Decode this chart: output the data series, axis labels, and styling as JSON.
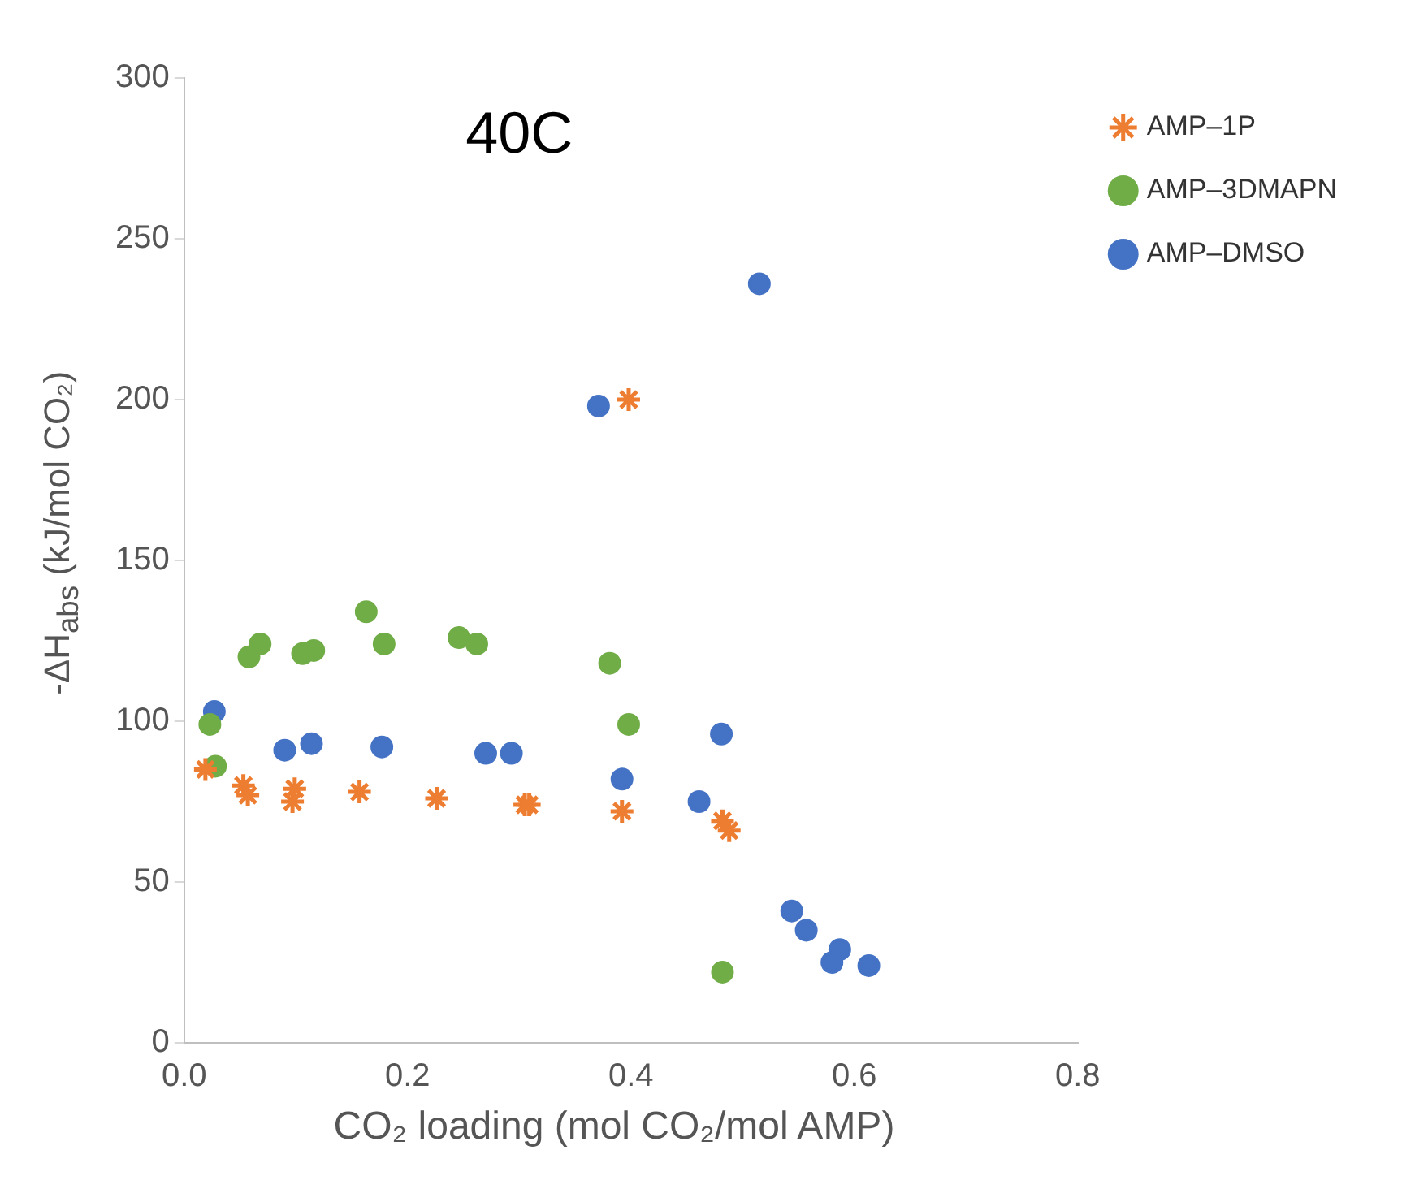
{
  "chart_data": {
    "type": "scatter",
    "title": "40C",
    "xlabel": "CO₂ loading (mol CO₂/mol AMP)",
    "ylabel": "-ΔH$_{abs}$  (kJ/mol CO₂)",
    "xlim": [
      0,
      0.8
    ],
    "xticks": [
      {
        "value": 0,
        "label": "0.0"
      },
      {
        "value": 0.2,
        "label": "0.2"
      },
      {
        "value": 0.4,
        "label": "0.4"
      },
      {
        "value": 0.6,
        "label": "0.6"
      },
      {
        "value": 0.8,
        "label": "0.8"
      }
    ],
    "ylim": [
      0,
      300
    ],
    "yticks": [
      0,
      50,
      100,
      150,
      200,
      250,
      300
    ],
    "grid": false,
    "legend": "top right",
    "series": [
      {
        "name": "AMP–DMSO",
        "color": "#4472c4",
        "marker": "circle",
        "x": [
          0.027,
          0.09,
          0.114,
          0.177,
          0.27,
          0.293,
          0.371,
          0.392,
          0.461,
          0.481,
          0.515,
          0.544,
          0.557,
          0.587,
          0.58,
          0.613
        ],
        "values": [
          103,
          91,
          93,
          92,
          90,
          90,
          198,
          82,
          75,
          96,
          236,
          41,
          35,
          29,
          25,
          24
        ]
      },
      {
        "name": "AMP–3DMAPN",
        "color": "#70ad47",
        "marker": "circle",
        "x": [
          0.023,
          0.028,
          0.058,
          0.068,
          0.106,
          0.116,
          0.163,
          0.179,
          0.246,
          0.262,
          0.381,
          0.398,
          0.482
        ],
        "values": [
          99,
          86,
          120,
          124,
          121,
          122,
          134,
          124,
          126,
          124,
          118,
          99,
          22
        ]
      },
      {
        "name": "AMP–1P",
        "color": "#ed7d31",
        "marker": "cross",
        "x": [
          0.019,
          0.053,
          0.057,
          0.097,
          0.099,
          0.157,
          0.226,
          0.305,
          0.309,
          0.392,
          0.398,
          0.482,
          0.488
        ],
        "values": [
          85,
          80,
          77,
          75,
          79,
          78,
          76,
          74,
          74,
          72,
          200,
          69,
          66
        ]
      }
    ]
  }
}
